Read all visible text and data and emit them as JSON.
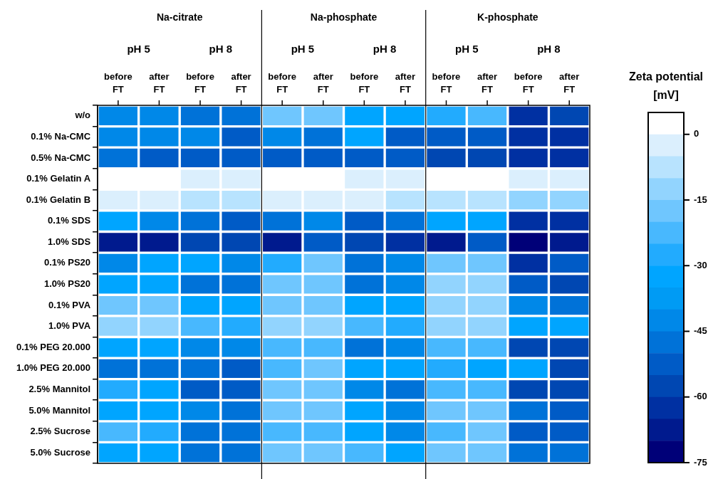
{
  "chart_data": {
    "type": "heatmap",
    "clabel": "Zeta potential [mV]",
    "annotations": [
      "Na-citrate",
      "Na-phosphate",
      "K-phosphate",
      "pH 5",
      "pH 8",
      "pH 5",
      "pH 8",
      "pH 5",
      "pH 8"
    ],
    "categories": [
      "before FT",
      "after FT",
      "before FT",
      "after FT",
      "before FT",
      "after FT",
      "before FT",
      "after FT",
      "before FT",
      "after FT",
      "before FT",
      "after FT"
    ],
    "y_categories": [
      "w/o",
      "0.1% Na-CMC",
      "0.5% Na-CMC",
      "0.1% Gelatin A",
      "0.1% Gelatin B",
      "0.1% SDS",
      "1.0% SDS",
      "0.1% PS20",
      "1.0% PS20",
      "0.1% PVA",
      "1.0% PVA",
      "0.1% PEG 20.000",
      "1.0% PEG 20.000",
      "2.5% Mannitol",
      "5.0% Mannitol",
      "2.5% Sucrose",
      "5.0% Sucrose"
    ],
    "cells": [
      [
        -42.5,
        -42.5,
        -47.5,
        -47.5,
        -17.5,
        -17.5,
        -32.5,
        -32.5,
        -27.5,
        -22.5,
        -62.5,
        -57.5
      ],
      [
        -42.5,
        -42.5,
        -42.5,
        -52.5,
        -42.5,
        -47.5,
        -32.5,
        -52.5,
        -52.5,
        -52.5,
        -62.5,
        -62.5
      ],
      [
        -47.5,
        -52.5,
        -52.5,
        -52.5,
        -52.5,
        -52.5,
        -52.5,
        -52.5,
        -57.5,
        -57.5,
        -62.5,
        -62.5
      ],
      [
        2.5,
        2.5,
        -2.5,
        -2.5,
        2.5,
        2.5,
        -2.5,
        -2.5,
        2.5,
        2.5,
        -2.5,
        -2.5
      ],
      [
        -2.5,
        -2.5,
        -7.5,
        -7.5,
        -2.5,
        -2.5,
        -2.5,
        -7.5,
        -7.5,
        -7.5,
        -12.5,
        -12.5
      ],
      [
        -32.5,
        -42.5,
        -47.5,
        -52.5,
        -47.5,
        -42.5,
        -52.5,
        -47.5,
        -32.5,
        -32.5,
        -62.5,
        -62.5
      ],
      [
        -67.5,
        -67.5,
        -57.5,
        -57.5,
        -67.5,
        -52.5,
        -57.5,
        -62.5,
        -67.5,
        -52.5,
        -72.5,
        -67.5
      ],
      [
        -42.5,
        -32.5,
        -32.5,
        -42.5,
        -27.5,
        -17.5,
        -47.5,
        -42.5,
        -17.5,
        -17.5,
        -62.5,
        -52.5
      ],
      [
        -32.5,
        -32.5,
        -47.5,
        -47.5,
        -17.5,
        -17.5,
        -47.5,
        -42.5,
        -12.5,
        -12.5,
        -52.5,
        -57.5
      ],
      [
        -17.5,
        -17.5,
        -32.5,
        -32.5,
        -17.5,
        -17.5,
        -32.5,
        -32.5,
        -12.5,
        -12.5,
        -42.5,
        -47.5
      ],
      [
        -12.5,
        -12.5,
        -22.5,
        -27.5,
        -12.5,
        -12.5,
        -22.5,
        -27.5,
        -12.5,
        -12.5,
        -32.5,
        -32.5
      ],
      [
        -32.5,
        -32.5,
        -42.5,
        -42.5,
        -22.5,
        -22.5,
        -47.5,
        -42.5,
        -22.5,
        -22.5,
        -57.5,
        -57.5
      ],
      [
        -47.5,
        -47.5,
        -47.5,
        -52.5,
        -22.5,
        -17.5,
        -32.5,
        -32.5,
        -27.5,
        -32.5,
        -32.5,
        -57.5
      ],
      [
        -27.5,
        -32.5,
        -52.5,
        -52.5,
        -17.5,
        -17.5,
        -42.5,
        -47.5,
        -22.5,
        -22.5,
        -57.5,
        -57.5
      ],
      [
        -32.5,
        -32.5,
        -42.5,
        -47.5,
        -17.5,
        -17.5,
        -32.5,
        -42.5,
        -17.5,
        -17.5,
        -47.5,
        -52.5
      ],
      [
        -22.5,
        -27.5,
        -47.5,
        -47.5,
        -22.5,
        -22.5,
        -32.5,
        -42.5,
        -22.5,
        -17.5,
        -52.5,
        -52.5
      ],
      [
        -32.5,
        -32.5,
        -47.5,
        -47.5,
        -17.5,
        -17.5,
        -22.5,
        -32.5,
        -17.5,
        -17.5,
        -47.5,
        -47.5
      ]
    ],
    "clim": [
      -75,
      5
    ],
    "cticks": [
      0,
      -15,
      -30,
      -45,
      -60,
      -75
    ]
  }
}
